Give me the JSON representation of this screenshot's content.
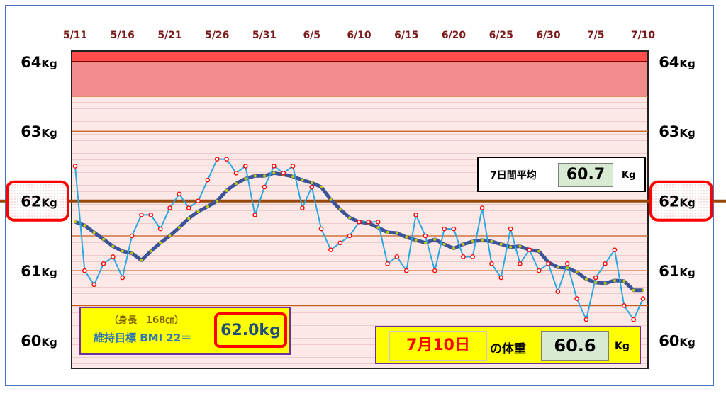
{
  "chart_data": {
    "type": "line",
    "x_ticks": [
      "5/11",
      "5/16",
      "5/21",
      "5/26",
      "5/31",
      "6/5",
      "6/10",
      "6/15",
      "6/20",
      "6/25",
      "6/30",
      "7/5",
      "7/10"
    ],
    "y_ticks": [
      {
        "value": 64,
        "num": "64",
        "unit": "Kg"
      },
      {
        "value": 63,
        "num": "63",
        "unit": "Kg"
      },
      {
        "value": 62,
        "num": "62",
        "unit": "Kg"
      },
      {
        "value": 61,
        "num": "61",
        "unit": "Kg"
      },
      {
        "value": 60,
        "num": "60",
        "unit": "Kg"
      }
    ],
    "ylim": [
      59.6,
      64.15
    ],
    "xlim": [
      "5/11",
      "7/10"
    ],
    "target_weight": 62.0,
    "band_upper": [
      63.5,
      64.15
    ],
    "series": [
      {
        "name": "daily",
        "x": [
          "5/11",
          "5/12",
          "5/13",
          "5/14",
          "5/15",
          "5/16",
          "5/17",
          "5/18",
          "5/19",
          "5/20",
          "5/21",
          "5/22",
          "5/23",
          "5/24",
          "5/25",
          "5/26",
          "5/27",
          "5/28",
          "5/29",
          "5/30",
          "5/31",
          "6/1",
          "6/2",
          "6/3",
          "6/4",
          "6/5",
          "6/6",
          "6/7",
          "6/8",
          "6/9",
          "6/10",
          "6/11",
          "6/12",
          "6/13",
          "6/14",
          "6/15",
          "6/16",
          "6/17",
          "6/18",
          "6/19",
          "6/20",
          "6/21",
          "6/22",
          "6/23",
          "6/24",
          "6/25",
          "6/26",
          "6/27",
          "6/28",
          "6/29",
          "6/30",
          "7/1",
          "7/2",
          "7/3",
          "7/4",
          "7/5",
          "7/6",
          "7/7",
          "7/8",
          "7/9",
          "7/10"
        ],
        "values": [
          62.5,
          61.0,
          60.8,
          61.1,
          61.2,
          60.9,
          61.5,
          61.8,
          61.8,
          61.6,
          61.9,
          62.1,
          61.9,
          62.0,
          62.3,
          62.6,
          62.6,
          62.4,
          62.5,
          61.8,
          62.2,
          62.5,
          62.4,
          62.5,
          61.9,
          62.2,
          61.6,
          61.3,
          61.4,
          61.5,
          61.7,
          61.7,
          61.7,
          61.1,
          61.2,
          61.0,
          61.8,
          61.5,
          61.0,
          61.6,
          61.6,
          61.2,
          61.2,
          61.9,
          61.1,
          60.9,
          61.6,
          61.1,
          61.3,
          61.0,
          61.1,
          60.7,
          61.1,
          60.6,
          60.3,
          60.9,
          61.1,
          61.3,
          60.5,
          60.3,
          60.6
        ]
      },
      {
        "name": "7day-average",
        "x": [
          "5/11",
          "5/12",
          "5/13",
          "5/14",
          "5/15",
          "5/16",
          "5/17",
          "5/18",
          "5/19",
          "5/20",
          "5/21",
          "5/22",
          "5/23",
          "5/24",
          "5/25",
          "5/26",
          "5/27",
          "5/28",
          "5/29",
          "5/30",
          "5/31",
          "6/1",
          "6/2",
          "6/3",
          "6/4",
          "6/5",
          "6/6",
          "6/7",
          "6/8",
          "6/9",
          "6/10",
          "6/11",
          "6/12",
          "6/13",
          "6/14",
          "6/15",
          "6/16",
          "6/17",
          "6/18",
          "6/19",
          "6/20",
          "6/21",
          "6/22",
          "6/23",
          "6/24",
          "6/25",
          "6/26",
          "6/27",
          "6/28",
          "6/29",
          "6/30",
          "7/1",
          "7/2",
          "7/3",
          "7/4",
          "7/5",
          "7/6",
          "7/7",
          "7/8",
          "7/9",
          "7/10"
        ],
        "values": [
          61.7,
          61.65,
          61.55,
          61.45,
          61.35,
          61.28,
          61.25,
          61.15,
          61.28,
          61.4,
          61.5,
          61.62,
          61.75,
          61.85,
          61.92,
          62.0,
          62.15,
          62.25,
          62.32,
          62.36,
          62.36,
          62.4,
          62.38,
          62.35,
          62.3,
          62.26,
          62.2,
          62.02,
          61.88,
          61.76,
          61.7,
          61.68,
          61.62,
          61.55,
          61.54,
          61.48,
          61.44,
          61.4,
          61.45,
          61.38,
          61.32,
          61.38,
          61.42,
          61.44,
          61.42,
          61.38,
          61.34,
          61.35,
          61.3,
          61.28,
          61.12,
          61.05,
          61.04,
          60.98,
          60.88,
          60.83,
          60.82,
          60.86,
          60.85,
          60.72,
          60.72
        ]
      }
    ]
  },
  "legend_target": {
    "height_line": "（身長　168㎝）",
    "label": "維持目標 BMI 22＝",
    "value": "62.0kg"
  },
  "average_box": {
    "label": "7日間平均",
    "value": "60.7",
    "unit": "Kg"
  },
  "today_box": {
    "date": "7月10日",
    "suffix": "の体重",
    "value": "60.6",
    "unit": "Kg"
  },
  "colors": {
    "daily_line": "#2aa8e0",
    "daily_marker": "#ff0000",
    "avg_line": "#3b5499",
    "avg_marker": "#c8c800",
    "target_line": "#984806",
    "band_upper": "#f28b8b",
    "band_upper_edge": "#ff4d4d",
    "plot_bg": "#fde6e6",
    "highlight": "#ff0000",
    "tick_date": "#7b1a1a"
  }
}
